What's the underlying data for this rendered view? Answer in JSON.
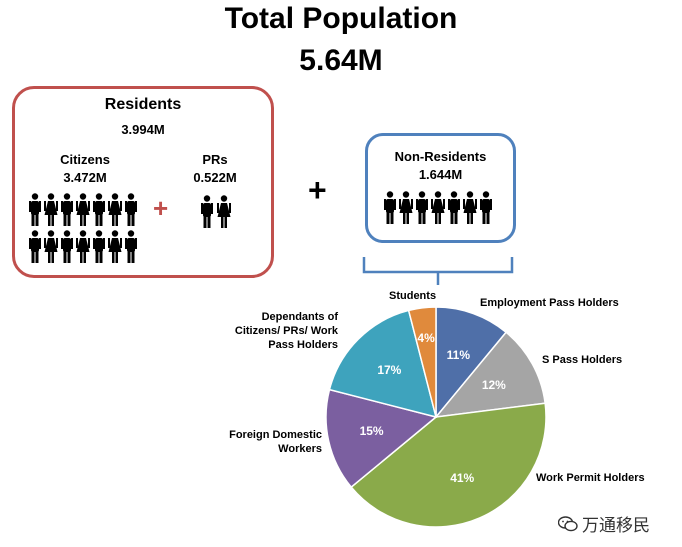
{
  "title": "Total Population",
  "total": "5.64M",
  "residents": {
    "label": "Residents",
    "value": "3.994M",
    "citizens_label": "Citizens",
    "citizens_value": "3.472M",
    "prs_label": "PRs",
    "prs_value": "0.522M",
    "plus": "+"
  },
  "plus": "+",
  "non_residents": {
    "label": "Non-Residents",
    "value": "1.644M"
  },
  "colors": {
    "residents_border": "#c0504d",
    "non_residents_border": "#4f81bd"
  },
  "watermark": "万通移民",
  "chart_data": {
    "type": "pie",
    "title": "",
    "slices": [
      {
        "name": "Employment Pass Holders",
        "value": 11,
        "label": "11%",
        "color": "#4f6fa8"
      },
      {
        "name": "S Pass Holders",
        "value": 12,
        "label": "12%",
        "color": "#a5a5a5"
      },
      {
        "name": "Work Permit Holders",
        "value": 41,
        "label": "41%",
        "color": "#8aaa4a"
      },
      {
        "name": "Foreign Domestic Workers",
        "value": 15,
        "label": "15%",
        "color": "#7b5fa0"
      },
      {
        "name": "Dependants of Citizens/ PRs/ Work Pass Holders",
        "value": 17,
        "label": "17%",
        "color": "#3ea3bd"
      },
      {
        "name": "Students",
        "value": 4,
        "label": "4%",
        "color": "#e08a3c"
      }
    ],
    "slice_labels": [
      [
        "Employment Pass Holders"
      ],
      [
        "S Pass Holders"
      ],
      [
        "Work Permit Holders"
      ],
      [
        "Foreign Domestic",
        "Workers"
      ],
      [
        "Dependants of",
        "Citizens/ PRs/ Work",
        "Pass Holders"
      ],
      [
        "Students"
      ]
    ]
  }
}
